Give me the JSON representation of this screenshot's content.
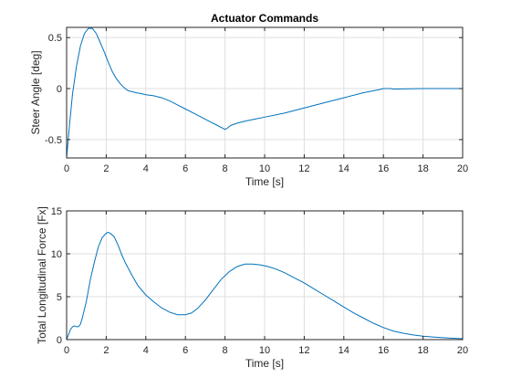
{
  "chart_data": [
    {
      "type": "line",
      "title": "Actuator Commands",
      "xlabel": "Time [s]",
      "ylabel": "Steer Angle [deg]",
      "xlim": [
        0,
        20
      ],
      "ylim": [
        -0.68,
        0.6
      ],
      "xticks": [
        0,
        2,
        4,
        6,
        8,
        10,
        12,
        14,
        16,
        18,
        20
      ],
      "yticks": [
        -0.5,
        0,
        0.5
      ],
      "ytick_labels": [
        "-0.5",
        "0",
        "0.5"
      ],
      "grid": true,
      "color": "#0072bd",
      "series": [
        {
          "x": [
            0,
            0.15,
            0.3,
            0.5,
            0.7,
            0.9,
            1.1,
            1.3,
            1.5,
            1.7,
            1.9,
            2.1,
            2.3,
            2.5,
            2.7,
            2.9,
            3.1,
            3.3,
            3.5,
            3.8,
            4.0,
            4.4,
            4.8,
            5.2,
            5.6,
            6.0,
            6.4,
            6.8,
            7.2,
            7.6,
            8.0,
            8.1,
            8.3,
            8.6,
            9.0,
            9.5,
            10.0,
            11.0,
            12.0,
            13.0,
            14.0,
            15.0,
            15.8,
            16.0,
            16.3,
            16.6,
            17.0,
            18.0,
            19.0,
            20.0
          ],
          "y": [
            -0.68,
            -0.35,
            -0.05,
            0.22,
            0.42,
            0.54,
            0.59,
            0.59,
            0.54,
            0.45,
            0.36,
            0.26,
            0.17,
            0.1,
            0.05,
            0.01,
            -0.02,
            -0.03,
            -0.04,
            -0.05,
            -0.06,
            -0.07,
            -0.09,
            -0.12,
            -0.16,
            -0.2,
            -0.24,
            -0.28,
            -0.32,
            -0.36,
            -0.4,
            -0.39,
            -0.36,
            -0.34,
            -0.32,
            -0.3,
            -0.28,
            -0.24,
            -0.19,
            -0.14,
            -0.09,
            -0.04,
            -0.01,
            0.0,
            0.0,
            -0.005,
            -0.003,
            0.0,
            0.0,
            0.0
          ]
        }
      ]
    },
    {
      "type": "line",
      "title": "",
      "xlabel": "Time [s]",
      "ylabel": "Total Longitudinal Force [Fx]",
      "xlim": [
        0,
        20
      ],
      "ylim": [
        0,
        15
      ],
      "xticks": [
        0,
        2,
        4,
        6,
        8,
        10,
        12,
        14,
        16,
        18,
        20
      ],
      "yticks": [
        0,
        5,
        10,
        15
      ],
      "ytick_labels": [
        "0",
        "5",
        "10",
        "15"
      ],
      "grid": true,
      "color": "#0072bd",
      "series": [
        {
          "x": [
            0,
            0.1,
            0.2,
            0.3,
            0.4,
            0.5,
            0.6,
            0.7,
            0.8,
            1.0,
            1.2,
            1.4,
            1.6,
            1.8,
            2.0,
            2.1,
            2.2,
            2.4,
            2.6,
            2.8,
            3.0,
            3.3,
            3.6,
            4.0,
            4.4,
            4.8,
            5.2,
            5.6,
            6.0,
            6.3,
            6.6,
            7.0,
            7.4,
            7.8,
            8.2,
            8.6,
            9.0,
            9.4,
            9.8,
            10.2,
            10.6,
            11.0,
            11.5,
            12.0,
            12.5,
            13.0,
            13.5,
            14.0,
            14.5,
            15.0,
            15.5,
            16.0,
            16.5,
            17.0,
            17.5,
            18.0,
            18.5,
            19.0,
            19.5,
            20.0
          ],
          "y": [
            0.0,
            0.6,
            1.2,
            1.5,
            1.6,
            1.5,
            1.5,
            1.8,
            2.6,
            4.5,
            7.0,
            9.0,
            10.8,
            11.9,
            12.4,
            12.5,
            12.4,
            12.0,
            11.0,
            9.8,
            8.8,
            7.5,
            6.3,
            5.2,
            4.4,
            3.7,
            3.2,
            2.9,
            2.9,
            3.1,
            3.6,
            4.6,
            5.8,
            7.0,
            7.9,
            8.5,
            8.8,
            8.8,
            8.7,
            8.5,
            8.2,
            7.8,
            7.2,
            6.6,
            5.9,
            5.2,
            4.5,
            3.8,
            3.1,
            2.5,
            1.9,
            1.4,
            1.0,
            0.75,
            0.55,
            0.4,
            0.3,
            0.22,
            0.16,
            0.1
          ]
        }
      ]
    }
  ]
}
